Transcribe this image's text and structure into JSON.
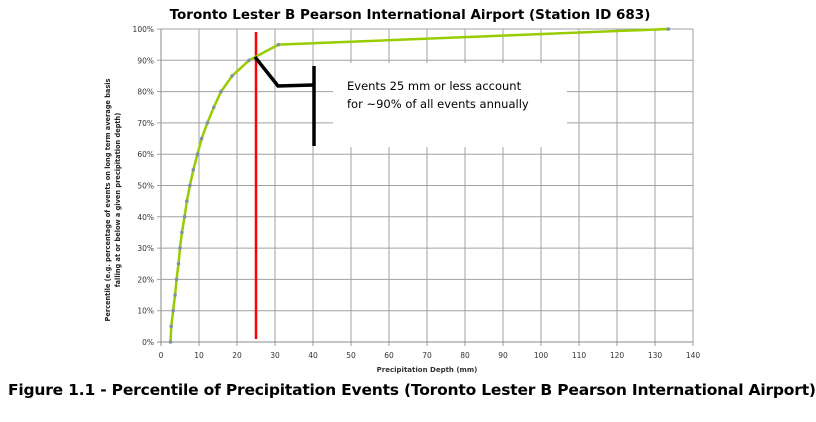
{
  "chart_data": {
    "type": "line",
    "title": "Toronto Lester B Pearson International Airport (Station ID 683)",
    "xlabel": "Precipitation Depth (mm)",
    "ylabel_lines": [
      "Percentile (e.g. percentage of events on long term average basis",
      "falling at or below a given precipitation depth)"
    ],
    "xlim": [
      0,
      140
    ],
    "ylim": [
      0,
      100
    ],
    "x_ticks": [
      0,
      10,
      20,
      30,
      40,
      50,
      60,
      70,
      80,
      90,
      100,
      110,
      120,
      130,
      140
    ],
    "y_ticks": [
      "0%",
      "10%",
      "20%",
      "30%",
      "40%",
      "50%",
      "60%",
      "70%",
      "80%",
      "90%",
      "100%"
    ],
    "grid": true,
    "series": [
      {
        "color": "#99cc00",
        "marker_color": "#7f8fa6",
        "points": [
          [
            2.5,
            0
          ],
          [
            2.7,
            5
          ],
          [
            3.2,
            10
          ],
          [
            3.7,
            15
          ],
          [
            4.1,
            20
          ],
          [
            4.6,
            25
          ],
          [
            5.0,
            30
          ],
          [
            5.5,
            35
          ],
          [
            6.2,
            40
          ],
          [
            6.8,
            45
          ],
          [
            7.6,
            50
          ],
          [
            8.5,
            55
          ],
          [
            9.6,
            60
          ],
          [
            10.7,
            65
          ],
          [
            12.2,
            70
          ],
          [
            13.9,
            75
          ],
          [
            15.8,
            80
          ],
          [
            18.7,
            85
          ],
          [
            23.2,
            90
          ],
          [
            30.9,
            95
          ],
          [
            133.5,
            100
          ]
        ]
      }
    ],
    "reference_line": {
      "x": 25,
      "color": "#ff0000"
    },
    "annotation": {
      "lines": [
        "Events 25 mm or less account",
        "for ~90% of all events annually"
      ]
    }
  },
  "caption": "Figure 1.1 - Percentile of Precipitation Events (Toronto Lester B Pearson International Airport)"
}
